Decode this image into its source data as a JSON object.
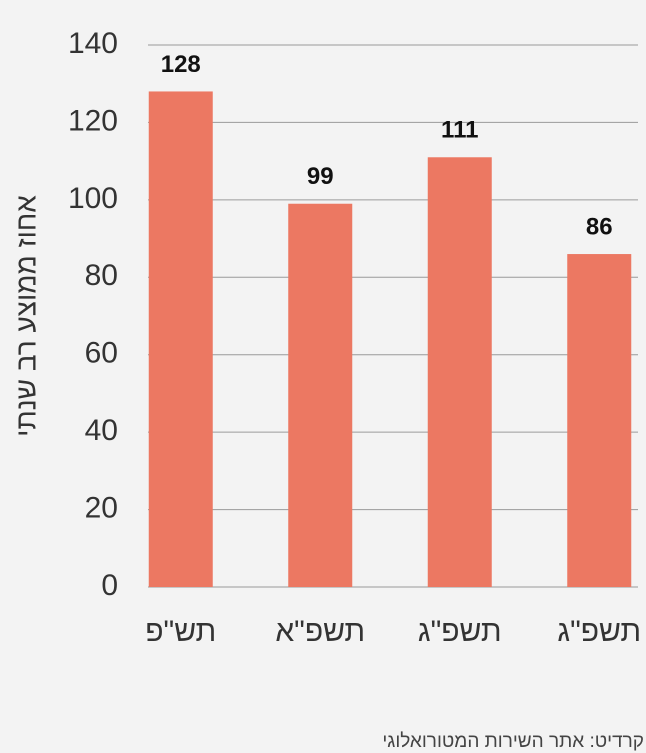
{
  "chart_data": {
    "type": "bar",
    "ylabel": "אחוז ממוצע רב שנתי",
    "categories": [
      "תש\"פ",
      "תשפ\"א",
      "תשפ\"ג",
      "תשפ\"ג"
    ],
    "values": [
      128,
      99,
      111,
      86
    ],
    "color": "#ec7862",
    "ylim": [
      0,
      140
    ],
    "yticks": [
      0,
      20,
      40,
      60,
      80,
      100,
      120,
      140
    ],
    "grid": true,
    "credit": "קרדיט: אתר השירות המטורואלוגי"
  }
}
